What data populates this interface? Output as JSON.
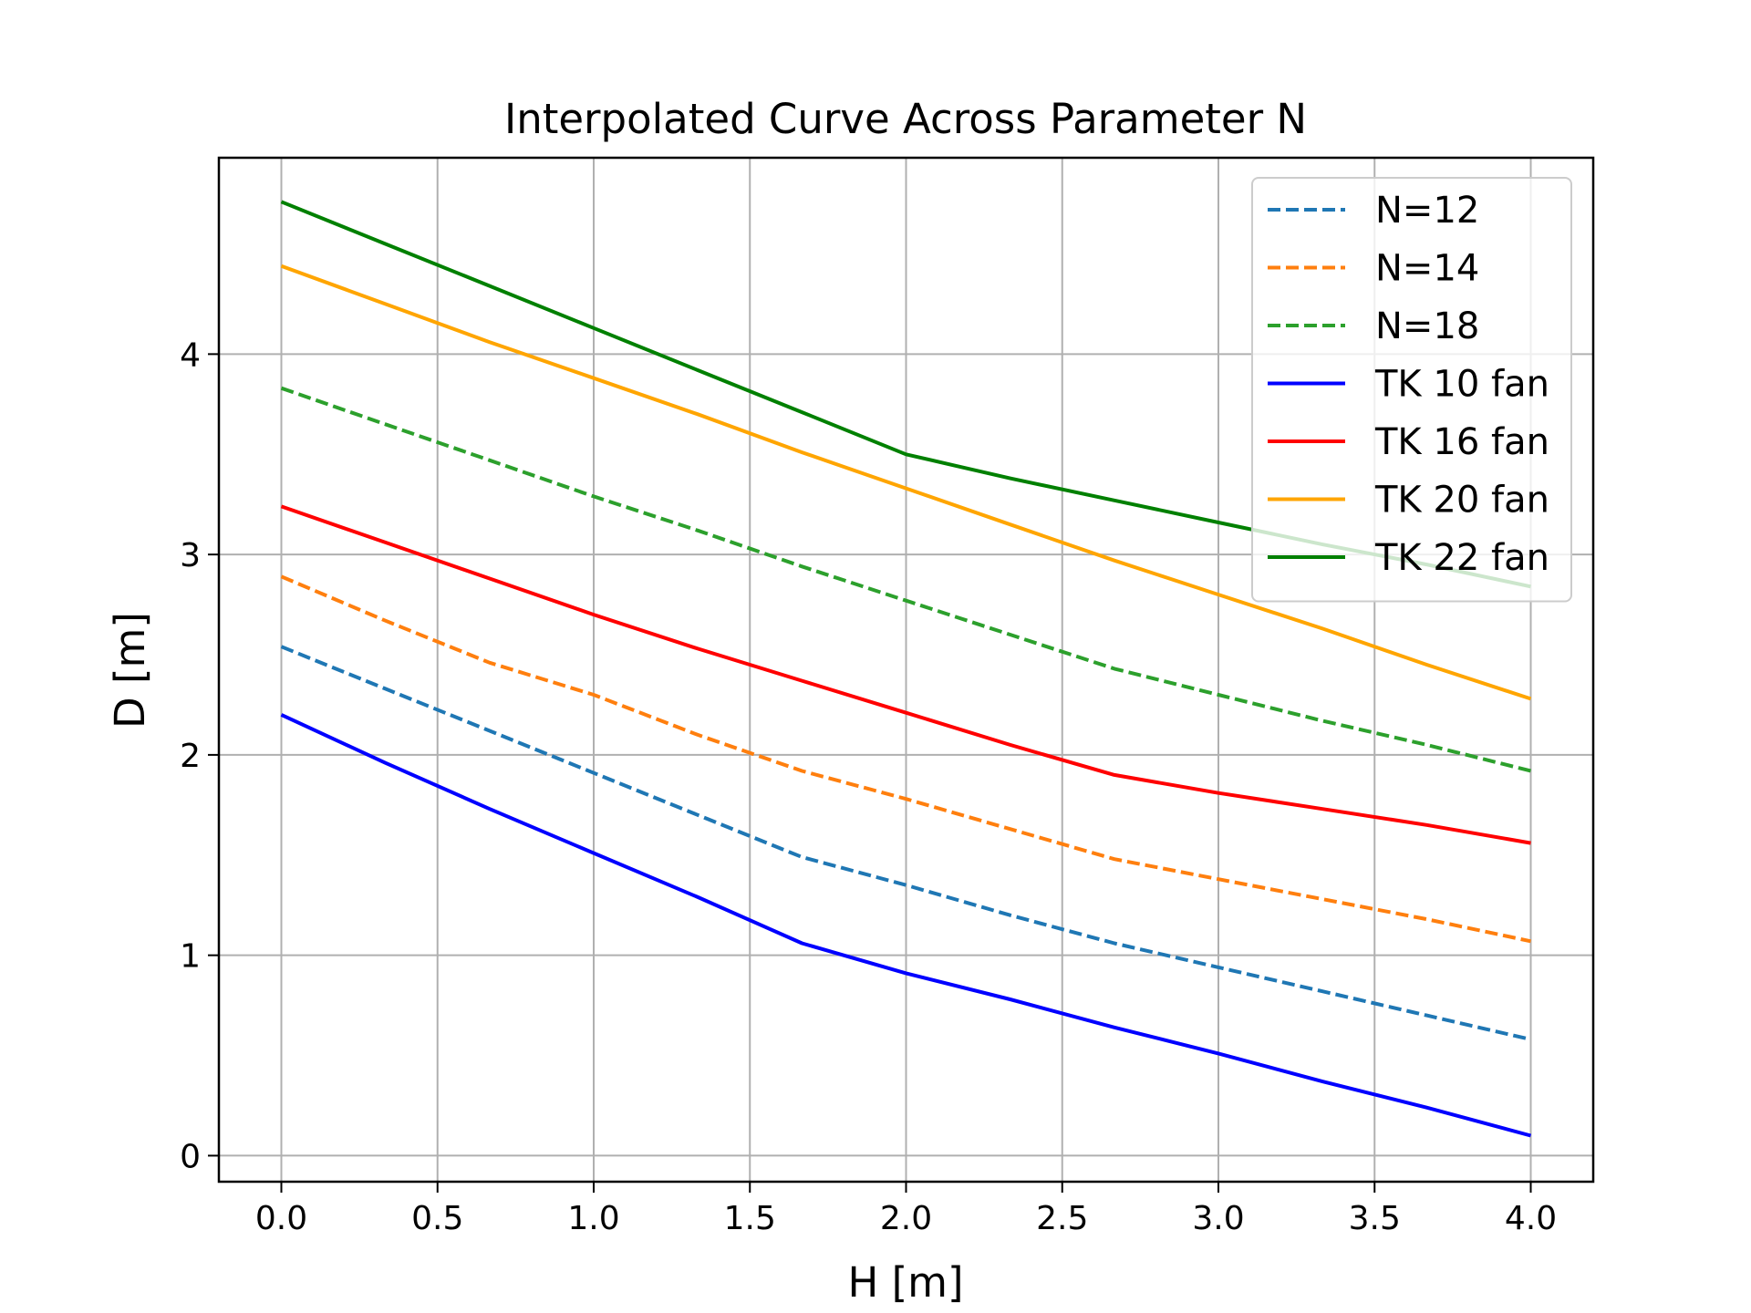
{
  "chart_data": {
    "type": "line",
    "title": "Interpolated Curve Across Parameter N",
    "xlabel": "H [m]",
    "ylabel": "D [m]",
    "xlim": [
      -0.2,
      4.2
    ],
    "ylim": [
      -0.13,
      4.98
    ],
    "xticks": [
      0.0,
      0.5,
      1.0,
      1.5,
      2.0,
      2.5,
      3.0,
      3.5,
      4.0
    ],
    "xtick_labels": [
      "0.0",
      "0.5",
      "1.0",
      "1.5",
      "2.0",
      "2.5",
      "3.0",
      "3.5",
      "4.0"
    ],
    "yticks": [
      0,
      1,
      2,
      3,
      4
    ],
    "ytick_labels": [
      "0",
      "1",
      "2",
      "3",
      "4"
    ],
    "grid": true,
    "legend_position": "top-right",
    "series": [
      {
        "name": "N=12",
        "color": "#1f77b4",
        "style": "dashed",
        "x": [
          0,
          0.333,
          0.667,
          1.0,
          1.333,
          1.667,
          2.0,
          2.333,
          2.667,
          3.0,
          3.333,
          3.667,
          4.0
        ],
        "y": [
          2.54,
          2.33,
          2.12,
          1.91,
          1.7,
          1.49,
          1.35,
          1.2,
          1.06,
          0.94,
          0.82,
          0.7,
          0.58
        ]
      },
      {
        "name": "N=14",
        "color": "#ff7f0e",
        "style": "dashed",
        "x": [
          0,
          0.333,
          0.667,
          1.0,
          1.333,
          1.667,
          2.0,
          2.333,
          2.667,
          3.0,
          3.333,
          3.667,
          4.0
        ],
        "y": [
          2.89,
          2.67,
          2.46,
          2.3,
          2.1,
          1.92,
          1.78,
          1.63,
          1.48,
          1.38,
          1.28,
          1.18,
          1.07
        ]
      },
      {
        "name": "N=18",
        "color": "#2ca02c",
        "style": "dashed",
        "x": [
          0,
          0.333,
          0.667,
          1.0,
          1.333,
          1.667,
          2.0,
          2.333,
          2.667,
          3.0,
          3.333,
          3.667,
          4.0
        ],
        "y": [
          3.83,
          3.65,
          3.47,
          3.29,
          3.12,
          2.94,
          2.77,
          2.6,
          2.43,
          2.3,
          2.17,
          2.05,
          1.92
        ]
      },
      {
        "name": "TK 10 fan",
        "color": "#0000ff",
        "style": "solid",
        "x": [
          0,
          0.333,
          0.667,
          1.0,
          1.333,
          1.667,
          2.0,
          2.333,
          2.667,
          3.0,
          3.333,
          3.667,
          4.0
        ],
        "y": [
          2.2,
          1.96,
          1.73,
          1.51,
          1.29,
          1.06,
          0.91,
          0.78,
          0.64,
          0.51,
          0.37,
          0.24,
          0.1
        ]
      },
      {
        "name": "TK 16 fan",
        "color": "#ff0000",
        "style": "solid",
        "x": [
          0,
          0.333,
          0.667,
          1.0,
          1.333,
          1.667,
          2.0,
          2.333,
          2.667,
          3.0,
          3.333,
          3.667,
          4.0
        ],
        "y": [
          3.24,
          3.06,
          2.88,
          2.7,
          2.53,
          2.37,
          2.21,
          2.05,
          1.9,
          1.81,
          1.73,
          1.65,
          1.56
        ]
      },
      {
        "name": "TK 20 fan",
        "color": "#ffa500",
        "style": "solid",
        "x": [
          0,
          0.333,
          0.667,
          1.0,
          1.333,
          1.667,
          2.0,
          2.333,
          2.667,
          3.0,
          3.333,
          3.667,
          4.0
        ],
        "y": [
          4.44,
          4.25,
          4.06,
          3.88,
          3.7,
          3.51,
          3.33,
          3.15,
          2.97,
          2.8,
          2.63,
          2.45,
          2.28
        ]
      },
      {
        "name": "TK 22 fan",
        "color": "#008000",
        "style": "solid",
        "x": [
          0,
          0.333,
          0.667,
          1.0,
          1.333,
          1.667,
          2.0,
          2.333,
          2.667,
          3.0,
          3.333,
          3.667,
          4.0
        ],
        "y": [
          4.76,
          4.55,
          4.34,
          4.13,
          3.92,
          3.71,
          3.5,
          3.38,
          3.27,
          3.16,
          3.05,
          2.95,
          2.84
        ]
      }
    ]
  }
}
